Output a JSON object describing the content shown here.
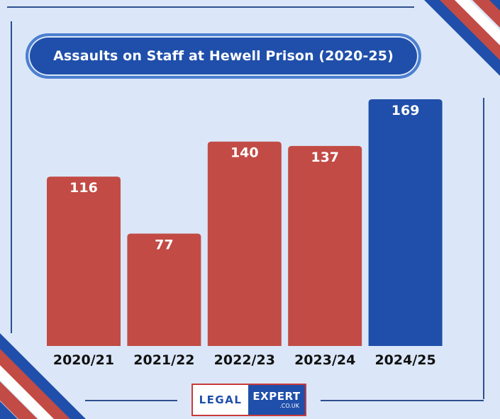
{
  "colors": {
    "background": "#dbe7f8",
    "bar_default": "#c24b45",
    "bar_highlight": "#1f4faa",
    "title_bg": "#1f4faa",
    "accent_red": "#c93a3a",
    "accent_blue": "#1f4faa"
  },
  "title": "Assaults on Staff at Hewell Prison (2020-25)",
  "chart_data": {
    "type": "bar",
    "title": "Assaults on Staff at Hewell Prison (2020-25)",
    "categories": [
      "2020/21",
      "2021/22",
      "2022/23",
      "2023/24",
      "2024/25"
    ],
    "values": [
      116,
      77,
      140,
      137,
      169
    ],
    "highlight_index": 4,
    "xlabel": "",
    "ylabel": "",
    "ylim": [
      0,
      200
    ],
    "grid": false,
    "legend": "none",
    "data_labels": true
  },
  "logo": {
    "left": "LEGAL",
    "right": "EXPERT",
    "sub": ".CO.UK"
  }
}
